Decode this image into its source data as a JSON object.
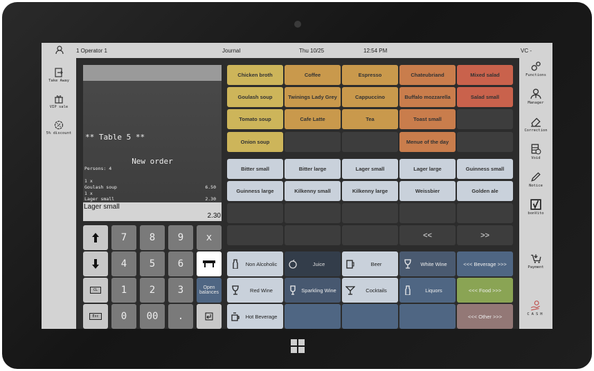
{
  "header": {
    "operator": "1 Operator 1",
    "journal": "Journal",
    "date": "Thu 10/25",
    "time": "12:54 PM",
    "vc": "VC -"
  },
  "left_sidebar": [
    {
      "label": "Take Away",
      "icon": "exit-icon"
    },
    {
      "label": "VIP sale",
      "icon": "gift-icon"
    },
    {
      "label": "5% discount",
      "icon": "percent-icon"
    }
  ],
  "right_sidebar": [
    {
      "label": "Functions",
      "icon": "gears-icon"
    },
    {
      "label": "Manager",
      "icon": "manager-icon"
    },
    {
      "label": "Correction",
      "icon": "eraser-icon"
    },
    {
      "label": "Void",
      "icon": "void-icon"
    },
    {
      "label": "Notice",
      "icon": "pencil-icon"
    },
    {
      "label": "bonVito",
      "icon": "checkbox-icon"
    },
    {
      "label": "Payment",
      "icon": "cart-icon"
    },
    {
      "label": "CASH",
      "icon": "cash-hand-icon"
    }
  ],
  "receipt": {
    "table": "** Table 5 **",
    "title": "New order",
    "persons": "Persons:  4",
    "lines": [
      {
        "qty": "1 x",
        "name": "Goulash soup",
        "price": "6.50"
      },
      {
        "qty": "1 x",
        "name": "Lager small",
        "price": "2.30"
      }
    ],
    "selected_item": "Lager small",
    "selected_price": "2.30"
  },
  "keypad": {
    "keys": [
      "7",
      "8",
      "9",
      "x",
      "4",
      "5",
      "6",
      "1",
      "2",
      "3",
      "0",
      "00",
      "."
    ],
    "open_balances": "Open balances",
    "cl": "CL",
    "esc": "Esc"
  },
  "products": [
    {
      "label": "Chicken broth",
      "color": "#cdb55a"
    },
    {
      "label": "Coffee",
      "color": "#c9994c"
    },
    {
      "label": "Espresso",
      "color": "#c9994c"
    },
    {
      "label": "Chateubriand",
      "color": "#c97d4c"
    },
    {
      "label": "Mixed salad",
      "color": "#c9624c"
    },
    {
      "label": "Goulash soup",
      "color": "#cdb55a"
    },
    {
      "label": "Twinings Lady Grey",
      "color": "#c9994c"
    },
    {
      "label": "Cappuccino",
      "color": "#c9994c"
    },
    {
      "label": "Buffalo mozzarella",
      "color": "#c97d4c"
    },
    {
      "label": "Salad small",
      "color": "#c9624c"
    },
    {
      "label": "Tomato soup",
      "color": "#cdb55a"
    },
    {
      "label": "Cafe Latte",
      "color": "#c9994c"
    },
    {
      "label": "Tea",
      "color": "#c9994c"
    },
    {
      "label": "Toast small",
      "color": "#c97d4c"
    },
    {
      "label": "",
      "color": "#3d3d3d"
    },
    {
      "label": "Onion soup",
      "color": "#cdb55a"
    },
    {
      "label": "",
      "color": "#3d3d3d"
    },
    {
      "label": "",
      "color": "#3d3d3d"
    },
    {
      "label": "Menue of the day",
      "color": "#c97d4c"
    },
    {
      "label": "",
      "color": "#3d3d3d"
    }
  ],
  "drinks": [
    {
      "label": "Bitter small",
      "color": "#c9d1db"
    },
    {
      "label": "Bitter large",
      "color": "#c9d1db"
    },
    {
      "label": "Lager small",
      "color": "#c9d1db"
    },
    {
      "label": "Lager large",
      "color": "#c9d1db"
    },
    {
      "label": "Guinness small",
      "color": "#c9d1db"
    },
    {
      "label": "Guinness large",
      "color": "#c9d1db"
    },
    {
      "label": "Kilkenny small",
      "color": "#c9d1db"
    },
    {
      "label": "Kilkenny large",
      "color": "#c9d1db"
    },
    {
      "label": "Weissbier",
      "color": "#c9d1db"
    },
    {
      "label": "Golden ale",
      "color": "#c9d1db"
    },
    {
      "label": "",
      "color": "#3d3d3d"
    },
    {
      "label": "",
      "color": "#3d3d3d"
    },
    {
      "label": "",
      "color": "#3d3d3d"
    },
    {
      "label": "",
      "color": "#3d3d3d"
    },
    {
      "label": "",
      "color": "#3d3d3d"
    },
    {
      "label": "",
      "color": "#3d3d3d"
    },
    {
      "label": "",
      "color": "#3d3d3d"
    },
    {
      "label": "",
      "color": "#3d3d3d"
    },
    {
      "label": "<<",
      "color": "#3d3d3d"
    },
    {
      "label": ">>",
      "color": "#3d3d3d"
    }
  ],
  "categories": [
    {
      "label": "Non Alcoholic",
      "icon": "bottle-icon",
      "color": "#c9d1db",
      "text": "#222"
    },
    {
      "label": "Juice",
      "icon": "apple-icon",
      "color": "#333d4a",
      "text": "#ddd"
    },
    {
      "label": "Beer",
      "icon": "beer-mug-icon",
      "color": "#c9d1db",
      "text": "#222"
    },
    {
      "label": "White Wine",
      "icon": "wine-glass-icon",
      "color": "#4a5a70",
      "text": "#eee"
    },
    {
      "label": "<<< Beverage >>>",
      "icon": "",
      "color": "#4f6683",
      "text": "#eee"
    },
    {
      "label": "Red Wine",
      "icon": "wine-glass-icon",
      "color": "#c9d1db",
      "text": "#222"
    },
    {
      "label": "Sparkling Wine",
      "icon": "champagne-icon",
      "color": "#475870",
      "text": "#eee"
    },
    {
      "label": "Cocktails",
      "icon": "cocktail-icon",
      "color": "#c9d1db",
      "text": "#222"
    },
    {
      "label": "Liquors",
      "icon": "bottle-icon",
      "color": "#4f6683",
      "text": "#eee"
    },
    {
      "label": "<<< Food >>>",
      "icon": "",
      "color": "#8aa454",
      "text": "#eee"
    },
    {
      "label": "Hot Beverage",
      "icon": "cup-icon",
      "color": "#c9d1db",
      "text": "#222"
    },
    {
      "label": "",
      "icon": "",
      "color": "#4f6683",
      "text": "#eee"
    },
    {
      "label": "",
      "icon": "",
      "color": "#4f6683",
      "text": "#eee"
    },
    {
      "label": "",
      "icon": "",
      "color": "#4f6683",
      "text": "#eee"
    },
    {
      "label": "<<< Other >>>",
      "icon": "",
      "color": "#937876",
      "text": "#eee"
    }
  ]
}
